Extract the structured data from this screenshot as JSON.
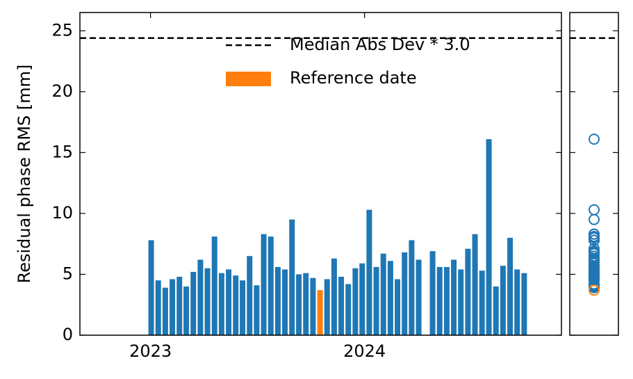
{
  "chart_data": {
    "type": "bar",
    "ylabel": "Residual phase RMS [mm]",
    "xlim": [
      2022.67,
      2024.92
    ],
    "xticks": [
      2023,
      2024
    ],
    "ylim": [
      0,
      26.5
    ],
    "yticks": [
      0,
      5,
      10,
      15,
      20,
      25
    ],
    "legend": "upper right",
    "threshold": {
      "name": "Median Abs Dev * 3.0",
      "value": 24.4,
      "color": "#000000"
    },
    "series": [
      {
        "color": "#1f77b4",
        "x": [
          2023.003,
          2023.036,
          2023.069,
          2023.102,
          2023.135,
          2023.167,
          2023.2,
          2023.233,
          2023.266,
          2023.299,
          2023.332,
          2023.365,
          2023.398,
          2023.43,
          2023.463,
          2023.496,
          2023.529,
          2023.562,
          2023.595,
          2023.628,
          2023.661,
          2023.693,
          2023.726,
          2023.759,
          2023.825,
          2023.858,
          2023.891,
          2023.924,
          2023.957,
          2023.989,
          2024.022,
          2024.055,
          2024.088,
          2024.121,
          2024.154,
          2024.187,
          2024.22,
          2024.253,
          2024.318,
          2024.351,
          2024.384,
          2024.417,
          2024.45,
          2024.483,
          2024.516,
          2024.549,
          2024.581,
          2024.614,
          2024.647,
          2024.68,
          2024.713,
          2024.746
        ],
        "values": [
          7.8,
          4.5,
          3.9,
          4.6,
          4.8,
          4.0,
          5.2,
          6.2,
          5.5,
          8.1,
          5.1,
          5.4,
          4.9,
          4.5,
          6.5,
          4.1,
          8.3,
          8.1,
          5.6,
          5.4,
          9.5,
          5.0,
          5.1,
          4.7,
          4.6,
          6.3,
          4.8,
          4.2,
          5.5,
          5.9,
          10.3,
          5.6,
          6.7,
          6.1,
          4.6,
          6.8,
          7.8,
          6.2,
          6.9,
          5.6,
          5.6,
          6.2,
          5.4,
          7.1,
          8.3,
          5.3,
          16.1,
          4.0,
          5.7,
          8.0,
          5.4,
          5.1
        ]
      },
      {
        "name": "Reference date",
        "color": "#ff7f0e",
        "x": [
          2023.792
        ],
        "values": [
          3.7
        ]
      }
    ]
  }
}
